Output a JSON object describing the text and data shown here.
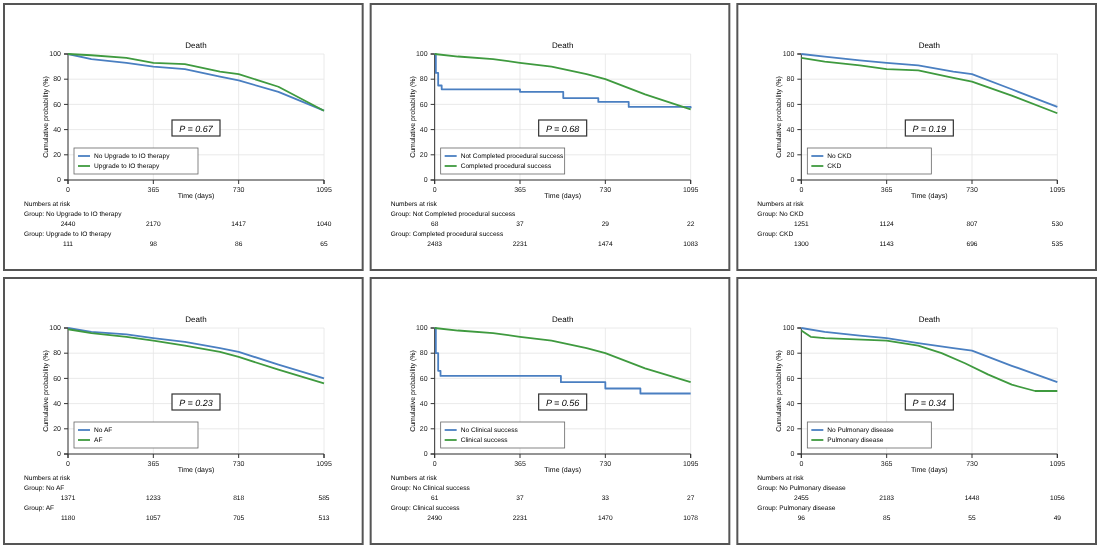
{
  "chart_data": [
    {
      "type": "line",
      "title": "Death",
      "xlabel": "Time (days)",
      "ylabel": "Cumulative probability (%)",
      "xlim": [
        0,
        1095
      ],
      "xticks": [
        0,
        365,
        730,
        1095
      ],
      "ylim": [
        0,
        100
      ],
      "yticks": [
        0,
        20,
        40,
        60,
        80,
        100
      ],
      "grid": true,
      "legend": "bottom left",
      "series": [
        {
          "name": "No Upgrade to IO therapy",
          "color": "#4a7fc1",
          "x": [
            0,
            100,
            250,
            365,
            500,
            650,
            730,
            900,
            1095
          ],
          "values": [
            100,
            96,
            93,
            90,
            88,
            82,
            79,
            70,
            55
          ]
        },
        {
          "name": "Upgrade to IO therapy",
          "color": "#3f9a3f",
          "x": [
            0,
            100,
            250,
            365,
            500,
            650,
            730,
            900,
            1095
          ],
          "values": [
            100,
            99,
            97,
            93,
            92,
            86,
            84,
            74,
            55
          ]
        }
      ],
      "annotations": [
        "P = 0.67",
        "Numbers at risk",
        "Group: No Upgrade to IO therapy",
        "2440 2170 1417 1040",
        "Group: Upgrade to IO therapy",
        "111 98 86 65"
      ]
    },
    {
      "type": "line",
      "title": "Death",
      "xlabel": "Time (days)",
      "ylabel": "Cumulative probability (%)",
      "xlim": [
        0,
        1095
      ],
      "xticks": [
        0,
        365,
        730,
        1095
      ],
      "ylim": [
        0,
        100
      ],
      "yticks": [
        0,
        20,
        40,
        60,
        80,
        100
      ],
      "grid": true,
      "legend": "bottom left",
      "series": [
        {
          "name": "Not Completed procedural success",
          "type": "step",
          "color": "#4a7fc1",
          "x": [
            0,
            5,
            15,
            30,
            365,
            550,
            700,
            830,
            1095
          ],
          "values": [
            100,
            85,
            75,
            72,
            70,
            65,
            62,
            58,
            57
          ]
        },
        {
          "name": "Completed procedural success",
          "color": "#3f9a3f",
          "x": [
            0,
            100,
            250,
            365,
            500,
            650,
            730,
            900,
            1095
          ],
          "values": [
            100,
            98,
            96,
            93,
            90,
            84,
            80,
            68,
            56
          ]
        }
      ],
      "annotations": [
        "P = 0.68",
        "Numbers at risk",
        "Group: Not Completed procedural success",
        "68 37 29 22",
        "Group: Completed procedural success",
        "2483 2231 1474 1083"
      ]
    },
    {
      "type": "line",
      "title": "Death",
      "xlabel": "Time (days)",
      "ylabel": "Cumulative probability (%)",
      "xlim": [
        0,
        1095
      ],
      "xticks": [
        0,
        365,
        730,
        1095
      ],
      "ylim": [
        0,
        100
      ],
      "yticks": [
        0,
        20,
        40,
        60,
        80,
        100
      ],
      "grid": true,
      "legend": "bottom left",
      "series": [
        {
          "name": "No CKD",
          "color": "#4a7fc1",
          "x": [
            0,
            100,
            250,
            365,
            500,
            650,
            730,
            900,
            1095
          ],
          "values": [
            100,
            98,
            95,
            93,
            91,
            86,
            84,
            72,
            58
          ]
        },
        {
          "name": "CKD",
          "color": "#3f9a3f",
          "x": [
            0,
            100,
            250,
            365,
            500,
            650,
            730,
            900,
            1095
          ],
          "values": [
            97,
            94,
            91,
            88,
            87,
            81,
            78,
            67,
            53
          ]
        }
      ],
      "annotations": [
        "P = 0.19",
        "Numbers at risk",
        "Group: No CKD",
        "1251 1124 807 530",
        "Group: CKD",
        "1300 1143 696 535"
      ]
    },
    {
      "type": "line",
      "title": "Death",
      "xlabel": "Time (days)",
      "ylabel": "Cumulative probability (%)",
      "xlim": [
        0,
        1095
      ],
      "xticks": [
        0,
        365,
        730,
        1095
      ],
      "ylim": [
        0,
        100
      ],
      "yticks": [
        0,
        20,
        40,
        60,
        80,
        100
      ],
      "grid": true,
      "legend": "bottom left",
      "series": [
        {
          "name": "No AF",
          "color": "#4a7fc1",
          "x": [
            0,
            100,
            250,
            365,
            500,
            650,
            730,
            900,
            1095
          ],
          "values": [
            100,
            97,
            95,
            92,
            89,
            84,
            81,
            71,
            60
          ]
        },
        {
          "name": "AF",
          "color": "#3f9a3f",
          "x": [
            0,
            100,
            250,
            365,
            500,
            650,
            730,
            900,
            1095
          ],
          "values": [
            99,
            96,
            93,
            90,
            86,
            81,
            77,
            67,
            56
          ]
        }
      ],
      "annotations": [
        "P = 0.23",
        "Numbers at risk",
        "Group: No AF",
        "1371 1233 818 585",
        "Group: AF",
        "1180 1057 705 513"
      ]
    },
    {
      "type": "line",
      "title": "Death",
      "xlabel": "Time (days)",
      "ylabel": "Cumulative probability (%)",
      "xlim": [
        0,
        1095
      ],
      "xticks": [
        0,
        365,
        730,
        1095
      ],
      "ylim": [
        0,
        100
      ],
      "yticks": [
        0,
        20,
        40,
        60,
        80,
        100
      ],
      "grid": true,
      "legend": "bottom left",
      "series": [
        {
          "name": "No Clinical success",
          "type": "step",
          "color": "#4a7fc1",
          "x": [
            0,
            5,
            15,
            25,
            540,
            730,
            880,
            1095
          ],
          "values": [
            100,
            80,
            66,
            62,
            57,
            52,
            48,
            48
          ]
        },
        {
          "name": "Clinical success",
          "color": "#3f9a3f",
          "x": [
            0,
            100,
            250,
            365,
            500,
            650,
            730,
            900,
            1095
          ],
          "values": [
            100,
            98,
            96,
            93,
            90,
            84,
            80,
            68,
            57
          ]
        }
      ],
      "annotations": [
        "P = 0.56",
        "Numbers at risk",
        "Group: No Clinical success",
        "61 37 33 27",
        "Group: Clinical success",
        "2490 2231 1470 1078"
      ]
    },
    {
      "type": "line",
      "title": "Death",
      "xlabel": "Time (days)",
      "ylabel": "Cumulative probability (%)",
      "xlim": [
        0,
        1095
      ],
      "xticks": [
        0,
        365,
        730,
        1095
      ],
      "ylim": [
        0,
        100
      ],
      "yticks": [
        0,
        20,
        40,
        60,
        80,
        100
      ],
      "grid": true,
      "legend": "bottom left",
      "series": [
        {
          "name": "No Pulmonary disease",
          "color": "#4a7fc1",
          "x": [
            0,
            100,
            250,
            365,
            500,
            650,
            730,
            900,
            1095
          ],
          "values": [
            100,
            97,
            94,
            92,
            88,
            84,
            82,
            70,
            57
          ]
        },
        {
          "name": "Pulmonary disease",
          "color": "#3f9a3f",
          "x": [
            0,
            40,
            100,
            365,
            500,
            600,
            700,
            800,
            900,
            1000,
            1095
          ],
          "values": [
            98,
            93,
            92,
            90,
            86,
            80,
            72,
            63,
            55,
            50,
            50
          ]
        }
      ],
      "annotations": [
        "P = 0.34",
        "Numbers at risk",
        "Group: No Pulmonary disease",
        "2455 2183 1448 1056",
        "Group: Pulmonary disease",
        "96 85 55 49"
      ]
    }
  ]
}
